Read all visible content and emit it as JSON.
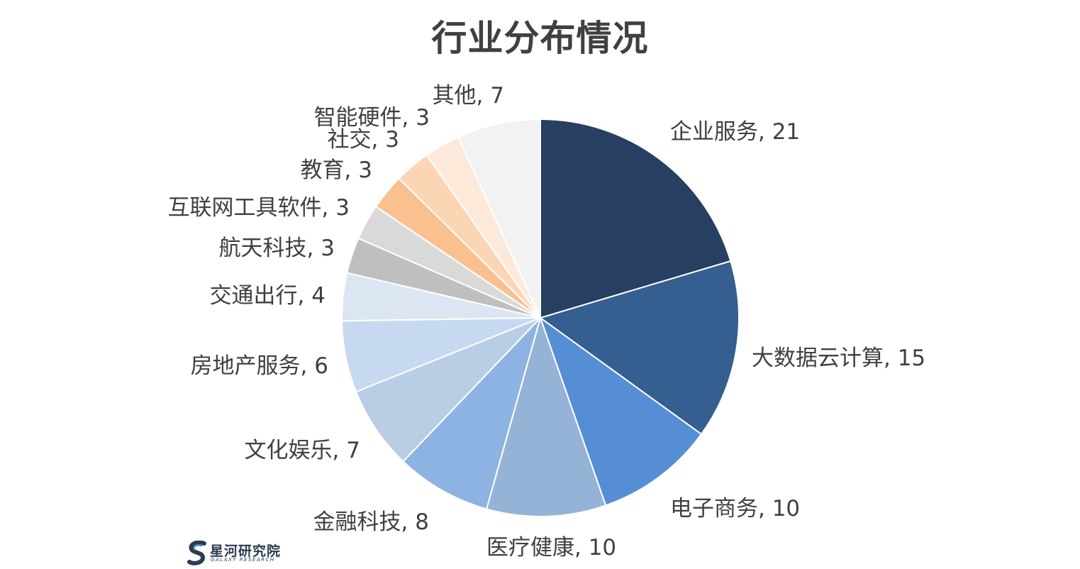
{
  "chart_data": {
    "type": "pie",
    "title": "行业分布情况",
    "start_angle_deg": 0,
    "direction": "clockwise",
    "slices": [
      {
        "label": "企业服务",
        "value": 21,
        "display": "企业服务, 21",
        "color": "#273f61"
      },
      {
        "label": "大数据云计算",
        "value": 15,
        "display": "大数据云计算, 15",
        "color": "#355e91"
      },
      {
        "label": "电子商务",
        "value": 10,
        "display": "电子商务, 10",
        "color": "#558ed5"
      },
      {
        "label": "医疗健康",
        "value": 10,
        "display": "医疗健康, 10",
        "color": "#95b3d7"
      },
      {
        "label": "金融科技",
        "value": 8,
        "display": "金融科技, 8",
        "color": "#8db3e2"
      },
      {
        "label": "文化娱乐",
        "value": 7,
        "display": "文化娱乐, 7",
        "color": "#b9cde5"
      },
      {
        "label": "房地产服务",
        "value": 6,
        "display": "房地产服务, 6",
        "color": "#c6d9f1"
      },
      {
        "label": "交通出行",
        "value": 4,
        "display": "交通出行, 4",
        "color": "#dce6f2"
      },
      {
        "label": "航天科技",
        "value": 3,
        "display": "航天科技, 3",
        "color": "#bfbfbf"
      },
      {
        "label": "互联网工具软件",
        "value": 3,
        "display": "互联网工具软件, 3",
        "color": "#d9d9d9"
      },
      {
        "label": "教育",
        "value": 3,
        "display": "教育, 3",
        "color": "#fac090"
      },
      {
        "label": "社交",
        "value": 3,
        "display": "社交, 3",
        "color": "#fcd5b5"
      },
      {
        "label": "智能硬件",
        "value": 3,
        "display": "智能硬件, 3",
        "color": "#fde9d9"
      },
      {
        "label": "其他",
        "value": 7,
        "display": "其他, 7",
        "color": "#f2f2f2"
      }
    ]
  },
  "branding": {
    "logo_cn": "星河研究院",
    "logo_en": "GALAXY RESEARCH",
    "logo_color": "#2d3b55",
    "logo_accent": "#4a90d9"
  }
}
